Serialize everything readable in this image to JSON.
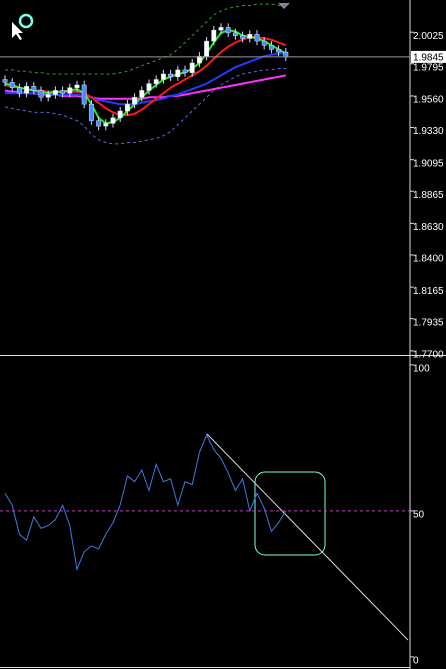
{
  "chart_data": [
    {
      "type": "candlestick",
      "open": [
        1.968,
        1.966,
        1.962,
        1.958,
        1.963,
        1.96,
        1.955,
        1.957,
        1.96,
        1.958,
        1.962,
        1.964,
        1.95,
        1.938,
        1.934,
        1.936,
        1.94,
        1.945,
        1.95,
        1.955,
        1.96,
        1.965,
        1.968,
        1.972,
        1.97,
        1.975,
        1.973,
        1.98,
        1.985,
        1.996,
        2.004,
        2.006,
        2.002,
        2.0,
        1.998,
        2.001,
        1.996,
        1.993,
        1.99,
        1.988
      ],
      "high": [
        1.971,
        1.969,
        1.965,
        1.966,
        1.966,
        1.963,
        1.96,
        1.963,
        1.963,
        1.965,
        1.967,
        1.967,
        1.953,
        1.941,
        1.939,
        1.943,
        1.948,
        1.953,
        1.958,
        1.963,
        1.968,
        1.971,
        1.975,
        1.975,
        1.978,
        1.978,
        1.983,
        1.988,
        1.999,
        2.007,
        2.009,
        2.009,
        2.005,
        2.003,
        2.004,
        2.004,
        1.999,
        1.996,
        1.993,
        1.991
      ],
      "low": [
        1.963,
        1.959,
        1.955,
        1.955,
        1.957,
        1.952,
        1.952,
        1.954,
        1.955,
        1.955,
        1.959,
        1.947,
        1.935,
        1.931,
        1.931,
        1.933,
        1.937,
        1.942,
        1.947,
        1.952,
        1.957,
        1.962,
        1.965,
        1.967,
        1.967,
        1.97,
        1.97,
        1.977,
        1.982,
        1.993,
        2.001,
        1.999,
        1.997,
        1.995,
        1.995,
        1.993,
        1.99,
        1.987,
        1.985,
        1.9815
      ],
      "close": [
        1.966,
        1.962,
        1.958,
        1.963,
        1.96,
        1.955,
        1.957,
        1.96,
        1.958,
        1.962,
        1.964,
        1.95,
        1.938,
        1.934,
        1.936,
        1.94,
        1.945,
        1.95,
        1.955,
        1.96,
        1.965,
        1.968,
        1.972,
        1.97,
        1.975,
        1.973,
        1.98,
        1.985,
        1.996,
        2.004,
        2.006,
        2.002,
        2.0,
        1.998,
        2.001,
        1.996,
        1.993,
        1.99,
        1.988,
        1.9845
      ],
      "series": [
        {
          "color": "#2f9e2f",
          "dash": true,
          "values": [
            1.975,
            1.975,
            1.974,
            1.974,
            1.973,
            1.973,
            1.972,
            1.972,
            1.972,
            1.972,
            1.972,
            1.972,
            1.972,
            1.972,
            1.972,
            1.972,
            1.973,
            1.974,
            1.976,
            1.978,
            1.98,
            1.982,
            1.984,
            1.986,
            1.99,
            1.995,
            2.0,
            2.005,
            2.01,
            2.015,
            2.018,
            2.02,
            2.021,
            2.022,
            2.022,
            2.023,
            2.023,
            2.023,
            2.022,
            2.022
          ]
        },
        {
          "color": "#5a6ee6",
          "dash": true,
          "values": [
            1.948,
            1.947,
            1.946,
            1.945,
            1.944,
            1.944,
            1.944,
            1.943,
            1.942,
            1.94,
            1.938,
            1.934,
            1.928,
            1.924,
            1.922,
            1.921,
            1.921,
            1.922,
            1.922,
            1.923,
            1.924,
            1.925,
            1.927,
            1.93,
            1.935,
            1.94,
            1.945,
            1.95,
            1.955,
            1.96,
            1.964,
            1.967,
            1.97,
            1.972,
            1.973,
            1.974,
            1.975,
            1.975,
            1.976,
            1.976
          ]
        },
        {
          "color": "#ff33ff",
          "dash": false,
          "values": [
            1.96,
            1.959,
            1.959,
            1.958,
            1.958,
            1.957,
            1.957,
            1.957,
            1.956,
            1.956,
            1.956,
            1.955,
            1.955,
            1.954,
            1.954,
            1.954,
            1.954,
            1.954,
            1.954,
            1.954,
            1.955,
            1.955,
            1.955,
            1.956,
            1.956,
            1.957,
            1.958,
            1.959,
            1.96,
            1.961,
            1.962,
            1.963,
            1.964,
            1.965,
            1.966,
            1.967,
            1.968,
            1.969,
            1.97,
            1.971
          ]
        },
        {
          "color": "#1f3cff",
          "dash": false,
          "values": [
            1.958,
            1.958,
            1.958,
            1.958,
            1.958,
            1.958,
            1.958,
            1.957,
            1.957,
            1.957,
            1.957,
            1.956,
            1.955,
            1.953,
            1.952,
            1.951,
            1.95,
            1.95,
            1.95,
            1.951,
            1.952,
            1.953,
            1.954,
            1.956,
            1.957,
            1.959,
            1.961,
            1.963,
            1.965,
            1.968,
            1.971,
            1.974,
            1.977,
            1.979,
            1.981,
            1.983,
            1.985,
            1.986,
            1.987,
            1.987
          ]
        },
        {
          "color": "#ff1a1a",
          "dash": false,
          "values": [
            1.964,
            1.963,
            1.962,
            1.961,
            1.96,
            1.96,
            1.959,
            1.959,
            1.959,
            1.959,
            1.959,
            1.958,
            1.955,
            1.951,
            1.947,
            1.944,
            1.942,
            1.942,
            1.943,
            1.946,
            1.95,
            1.954,
            1.958,
            1.962,
            1.965,
            1.968,
            1.971,
            1.974,
            1.978,
            1.983,
            1.988,
            1.992,
            1.995,
            1.997,
            1.999,
            1.999,
            1.998,
            1.997,
            1.995,
            1.993
          ]
        },
        {
          "color": "#22ee22",
          "dash": false,
          "values": [
            1.965,
            1.964,
            1.962,
            1.961,
            1.96,
            1.959,
            1.958,
            1.959,
            1.959,
            1.96,
            1.961,
            1.958,
            1.95,
            1.94,
            1.936,
            1.937,
            1.94,
            1.945,
            1.95,
            1.955,
            1.96,
            1.964,
            1.968,
            1.97,
            1.972,
            1.973,
            1.976,
            1.98,
            1.987,
            1.995,
            2.002,
            2.004,
            2.003,
            2.0,
            1.999,
            1.998,
            1.996,
            1.993,
            1.99,
            1.987
          ]
        }
      ],
      "ylim": [
        1.767,
        2.026
      ],
      "yticks": [
        2.0025,
        1.9795,
        {
          "value": 1.956,
          "label": "1.9560"
        },
        {
          "value": 1.933,
          "label": "1.9330"
        },
        1.9095,
        1.8865,
        {
          "value": 1.863,
          "label": "1.8630"
        },
        {
          "value": 1.84,
          "label": "1.8400"
        },
        1.8165,
        1.7935,
        {
          "value": 1.77,
          "label": "1.7700"
        }
      ],
      "last_price": 1.9845
    },
    {
      "type": "line",
      "series": [
        {
          "color": "#3d7be0",
          "values": [
            56,
            52,
            42,
            40,
            48,
            44,
            45,
            47,
            52,
            45,
            30,
            36,
            38,
            37,
            42,
            46,
            52,
            62,
            60,
            64,
            57,
            66,
            60,
            61,
            52,
            60,
            59,
            70,
            76,
            71,
            68,
            63,
            57,
            61,
            50,
            56,
            51,
            43,
            46,
            50
          ]
        }
      ],
      "ylim": [
        -3.8,
        102.7
      ],
      "yticks": [
        100,
        50,
        0
      ],
      "level": 50
    }
  ]
}
